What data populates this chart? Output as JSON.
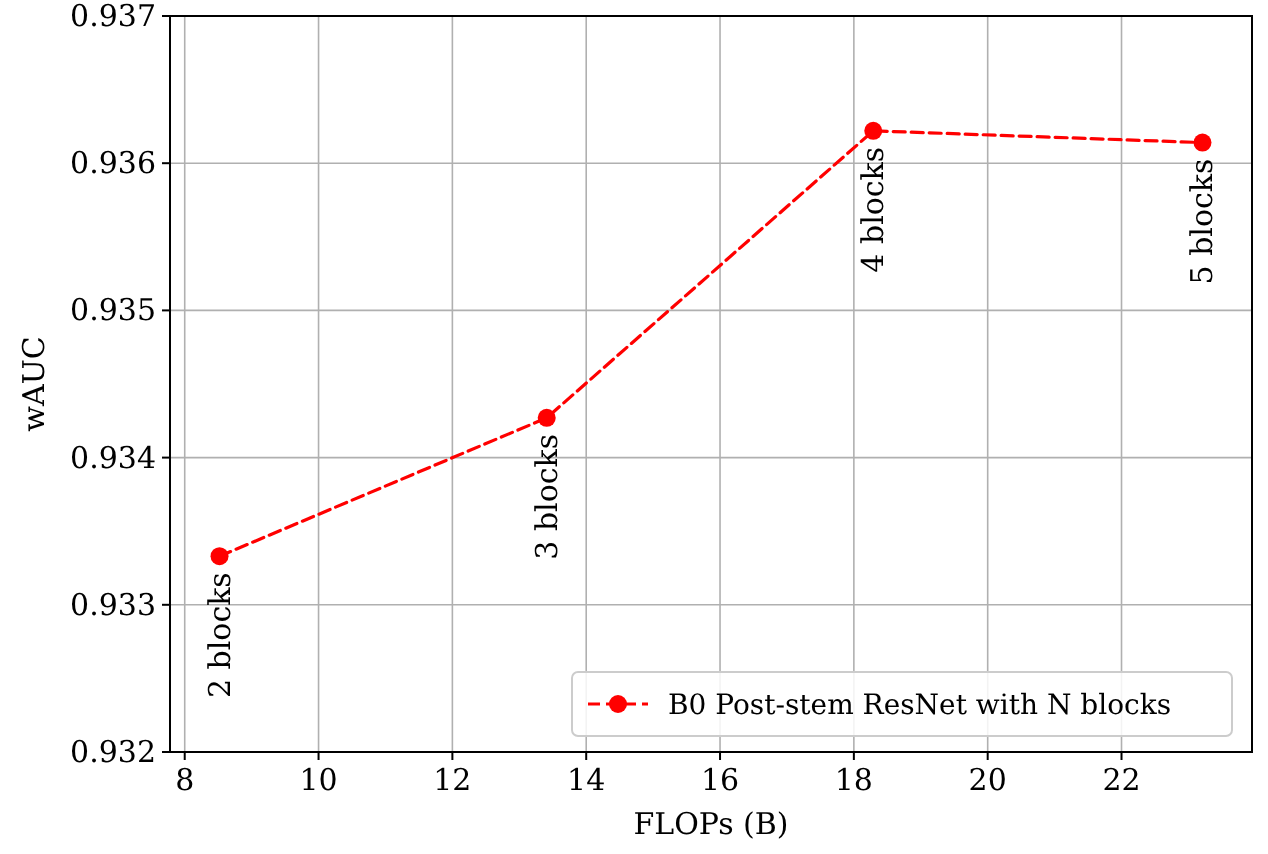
{
  "chart_data": {
    "type": "line",
    "xlabel": "FLOPs (B)",
    "ylabel": "wAUC",
    "x": [
      8.52,
      13.41,
      18.29,
      23.21
    ],
    "series": [
      {
        "name": "B0 Post-stem ResNet with N blocks",
        "color": "#ff0000",
        "values": [
          0.93333,
          0.93427,
          0.93622,
          0.93614
        ]
      }
    ],
    "xlim": [
      7.78,
      23.95
    ],
    "xticks": [
      8,
      10,
      12,
      14,
      16,
      18,
      20,
      22
    ],
    "ylim": [
      0.932,
      0.937
    ],
    "yticks": [
      {
        "value": 0.932,
        "label": "0.932"
      },
      {
        "value": 0.933,
        "label": "0.933"
      },
      {
        "value": 0.934,
        "label": "0.934"
      },
      {
        "value": 0.935,
        "label": "0.935"
      },
      {
        "value": 0.936,
        "label": "0.936"
      },
      {
        "value": 0.937,
        "label": "0.937"
      }
    ],
    "grid": true,
    "legend": "bottom right",
    "marker": "circle",
    "line_style": "dashed",
    "annotations": [
      {
        "text": "2 blocks",
        "x": 8.52,
        "y": 0.93333
      },
      {
        "text": "3 blocks",
        "x": 13.41,
        "y": 0.93427
      },
      {
        "text": "4 blocks",
        "x": 18.29,
        "y": 0.93622
      },
      {
        "text": "5 blocks",
        "x": 23.21,
        "y": 0.93614
      }
    ]
  }
}
